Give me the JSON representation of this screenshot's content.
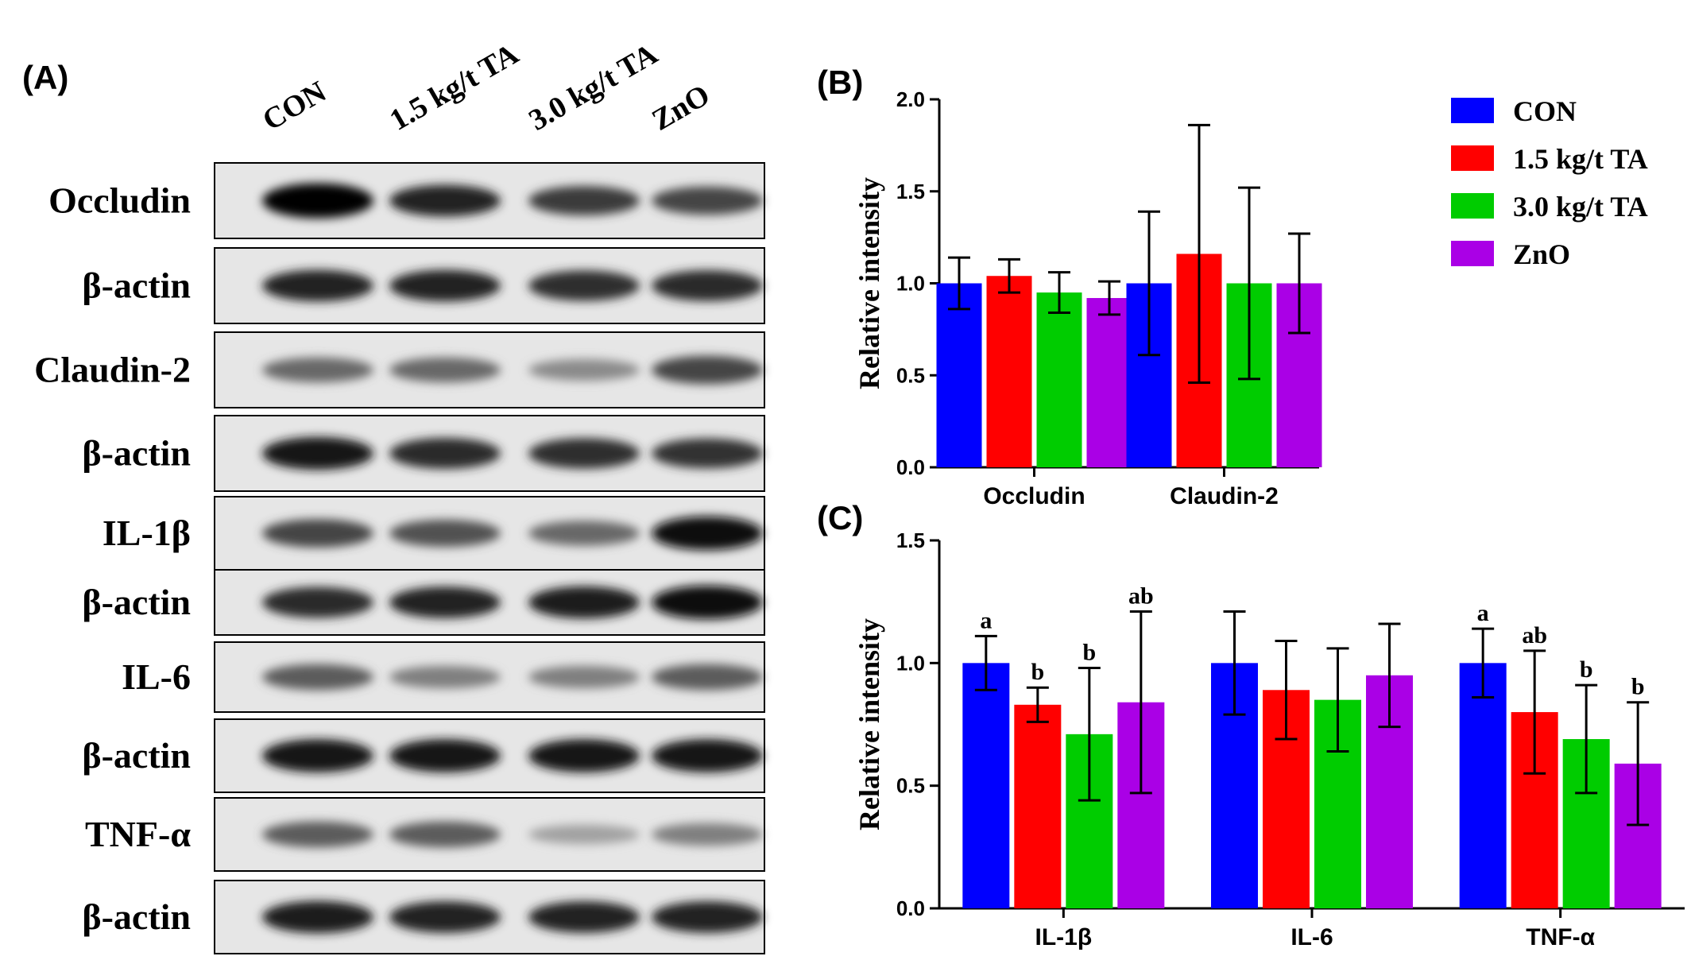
{
  "panels": {
    "a_label": "(A)",
    "b_label": "(B)",
    "c_label": "(C)"
  },
  "blot": {
    "lanes": [
      "CON",
      "1.5 kg/t TA",
      "3.0 kg/t TA",
      "ZnO"
    ],
    "rows": [
      {
        "label": "Occludin",
        "intensity": [
          1.0,
          0.85,
          0.75,
          0.7
        ]
      },
      {
        "label": "β-actin",
        "intensity": [
          0.85,
          0.85,
          0.8,
          0.82
        ]
      },
      {
        "label": "Claudin-2",
        "intensity": [
          0.55,
          0.55,
          0.4,
          0.7
        ]
      },
      {
        "label": "β-actin",
        "intensity": [
          0.9,
          0.82,
          0.8,
          0.78
        ]
      },
      {
        "label": "IL-1β",
        "intensity": [
          0.7,
          0.65,
          0.55,
          0.95
        ]
      },
      {
        "label": "β-actin",
        "intensity": [
          0.82,
          0.85,
          0.88,
          0.95
        ]
      },
      {
        "label": "IL-6",
        "intensity": [
          0.6,
          0.45,
          0.45,
          0.6
        ]
      },
      {
        "label": "β-actin",
        "intensity": [
          0.92,
          0.92,
          0.92,
          0.92
        ]
      },
      {
        "label": "TNF-α",
        "intensity": [
          0.6,
          0.6,
          0.3,
          0.45
        ]
      },
      {
        "label": "β-actin",
        "intensity": [
          0.88,
          0.85,
          0.85,
          0.85
        ]
      }
    ]
  },
  "colors": {
    "CON": "#0000ff",
    "1.5 kg/t TA": "#ff0000",
    "3.0 kg/t TA": "#00cc00",
    "ZnO": "#aa00e6"
  },
  "chart_data": [
    {
      "type": "bar",
      "panel": "(B)",
      "categories": [
        "Occludin",
        "Claudin-2"
      ],
      "series": [
        {
          "name": "CON",
          "values": [
            1.0,
            1.0
          ],
          "errors": [
            0.14,
            0.39
          ]
        },
        {
          "name": "1.5 kg/t TA",
          "values": [
            1.04,
            1.16
          ],
          "errors": [
            0.09,
            0.7
          ]
        },
        {
          "name": "3.0 kg/t TA",
          "values": [
            0.95,
            1.0
          ],
          "errors": [
            0.11,
            0.52
          ]
        },
        {
          "name": "ZnO",
          "values": [
            0.92,
            1.0
          ],
          "errors": [
            0.09,
            0.27
          ]
        }
      ],
      "ylabel": "Relative  intensity",
      "ylim": [
        0,
        2.0
      ],
      "yticks": [
        "0.0",
        "0.5",
        "1.0",
        "1.5",
        "2.0"
      ],
      "legend": "top-right",
      "grid": false
    },
    {
      "type": "bar",
      "panel": "(C)",
      "categories": [
        "IL-1β",
        "IL-6",
        "TNF-α"
      ],
      "series": [
        {
          "name": "CON",
          "values": [
            1.0,
            1.0,
            1.0
          ],
          "errors": [
            0.11,
            0.21,
            0.14
          ],
          "annotations": [
            "a",
            "",
            "a"
          ]
        },
        {
          "name": "1.5 kg/t TA",
          "values": [
            0.83,
            0.89,
            0.8
          ],
          "errors": [
            0.07,
            0.2,
            0.25
          ],
          "annotations": [
            "b",
            "",
            "ab"
          ]
        },
        {
          "name": "3.0 kg/t TA",
          "values": [
            0.71,
            0.85,
            0.69
          ],
          "errors": [
            0.27,
            0.21,
            0.22
          ],
          "annotations": [
            "b",
            "",
            "b"
          ]
        },
        {
          "name": "ZnO",
          "values": [
            0.84,
            0.95,
            0.59
          ],
          "errors": [
            0.37,
            0.21,
            0.25
          ],
          "annotations": [
            "ab",
            "",
            "b"
          ]
        }
      ],
      "ylabel": "Relative  intensity",
      "ylim": [
        0,
        1.5
      ],
      "yticks": [
        "0.0",
        "0.5",
        "1.0",
        "1.5"
      ],
      "grid": false
    }
  ]
}
